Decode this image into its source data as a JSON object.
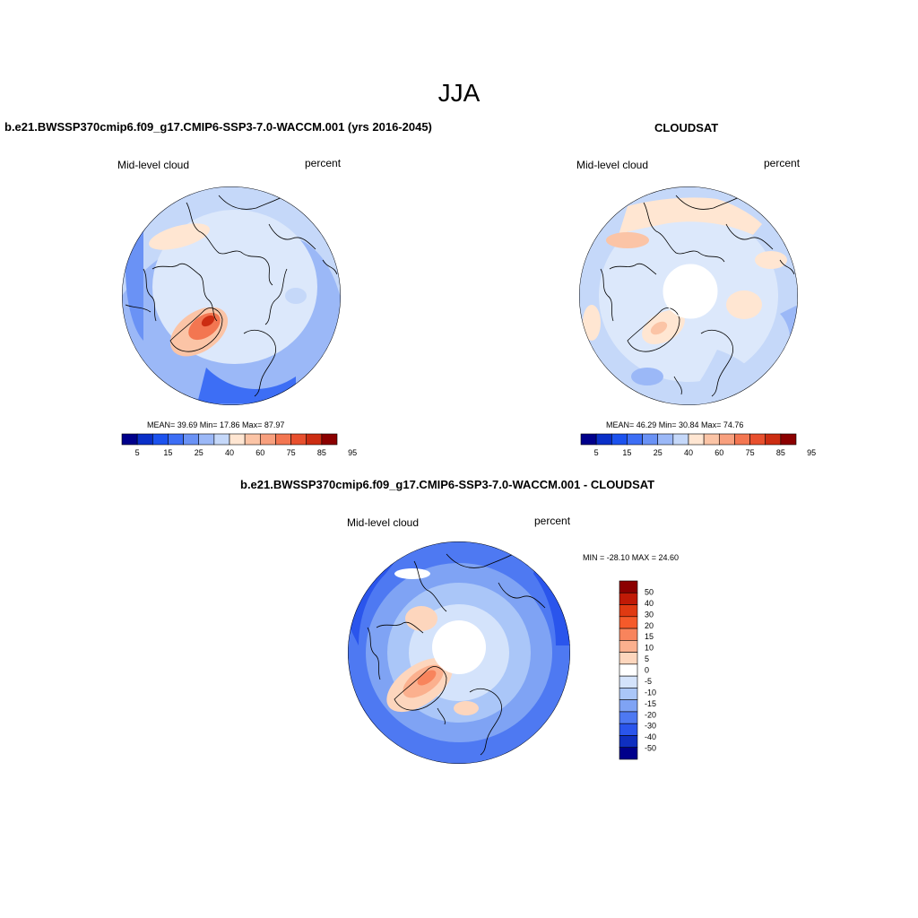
{
  "title": "JJA",
  "panels": [
    {
      "title": "b.e21.BWSSP370cmip6.f09_g17.CMIP6-SSP3-7.0-WACCM.001 (yrs 2016-2045)",
      "left_label": "Mid-level cloud",
      "right_label": "percent",
      "stats": "MEAN=  39.69  Min=  17.86  Max=  87.97"
    },
    {
      "title": "CLOUDSAT",
      "left_label": "Mid-level cloud",
      "right_label": "percent",
      "stats": "MEAN=  46.29  Min=  30.84  Max=  74.76"
    },
    {
      "title": "b.e21.BWSSP370cmip6.f09_g17.CMIP6-SSP3-7.0-WACCM.001 - CLOUDSAT",
      "left_label": "Mid-level cloud",
      "right_label": "percent",
      "stats": "MIN = -28.10 MAX =  24.60"
    }
  ],
  "colorbar_abs": {
    "labels": [
      "5",
      "15",
      "25",
      "40",
      "60",
      "75",
      "85",
      "95"
    ],
    "colors": [
      "#00008b",
      "#0a2fc8",
      "#1c52ee",
      "#3d6ef5",
      "#6a92f5",
      "#9bb8f7",
      "#c5d8f9",
      "#ffe6d2",
      "#fbc4a6",
      "#f8a07e",
      "#f37651",
      "#e8502e",
      "#cc2d12",
      "#8b0000"
    ]
  },
  "colorbar_diff": {
    "labels": [
      "50",
      "40",
      "30",
      "20",
      "15",
      "10",
      "5",
      "0",
      "-5",
      "-10",
      "-15",
      "-20",
      "-30",
      "-40",
      "-50"
    ],
    "colors": [
      "#8b0000",
      "#c01a06",
      "#e03a12",
      "#f55a2a",
      "#f8845c",
      "#fbb08e",
      "#fdd6bd",
      "#ffffff",
      "#d4e3fb",
      "#aac6f8",
      "#7fa3f4",
      "#4e79f2",
      "#2a55ec",
      "#0f2fc0",
      "#00008b"
    ]
  }
}
